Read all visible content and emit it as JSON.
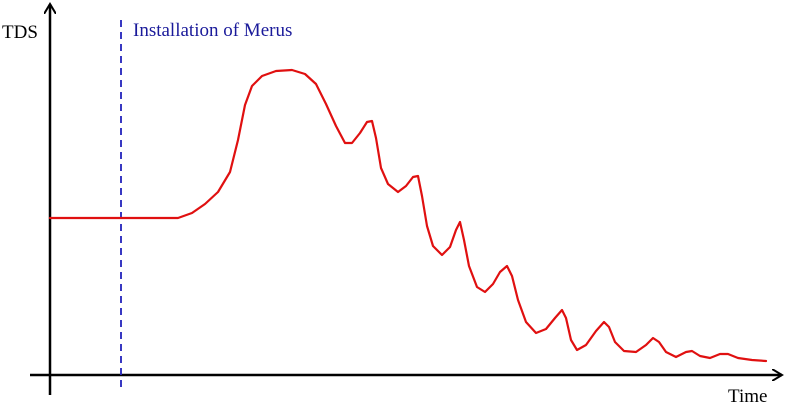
{
  "diagram": {
    "y_axis_label": "TDS",
    "x_axis_label": "Time",
    "annotation": "Installation of Merus"
  }
}
